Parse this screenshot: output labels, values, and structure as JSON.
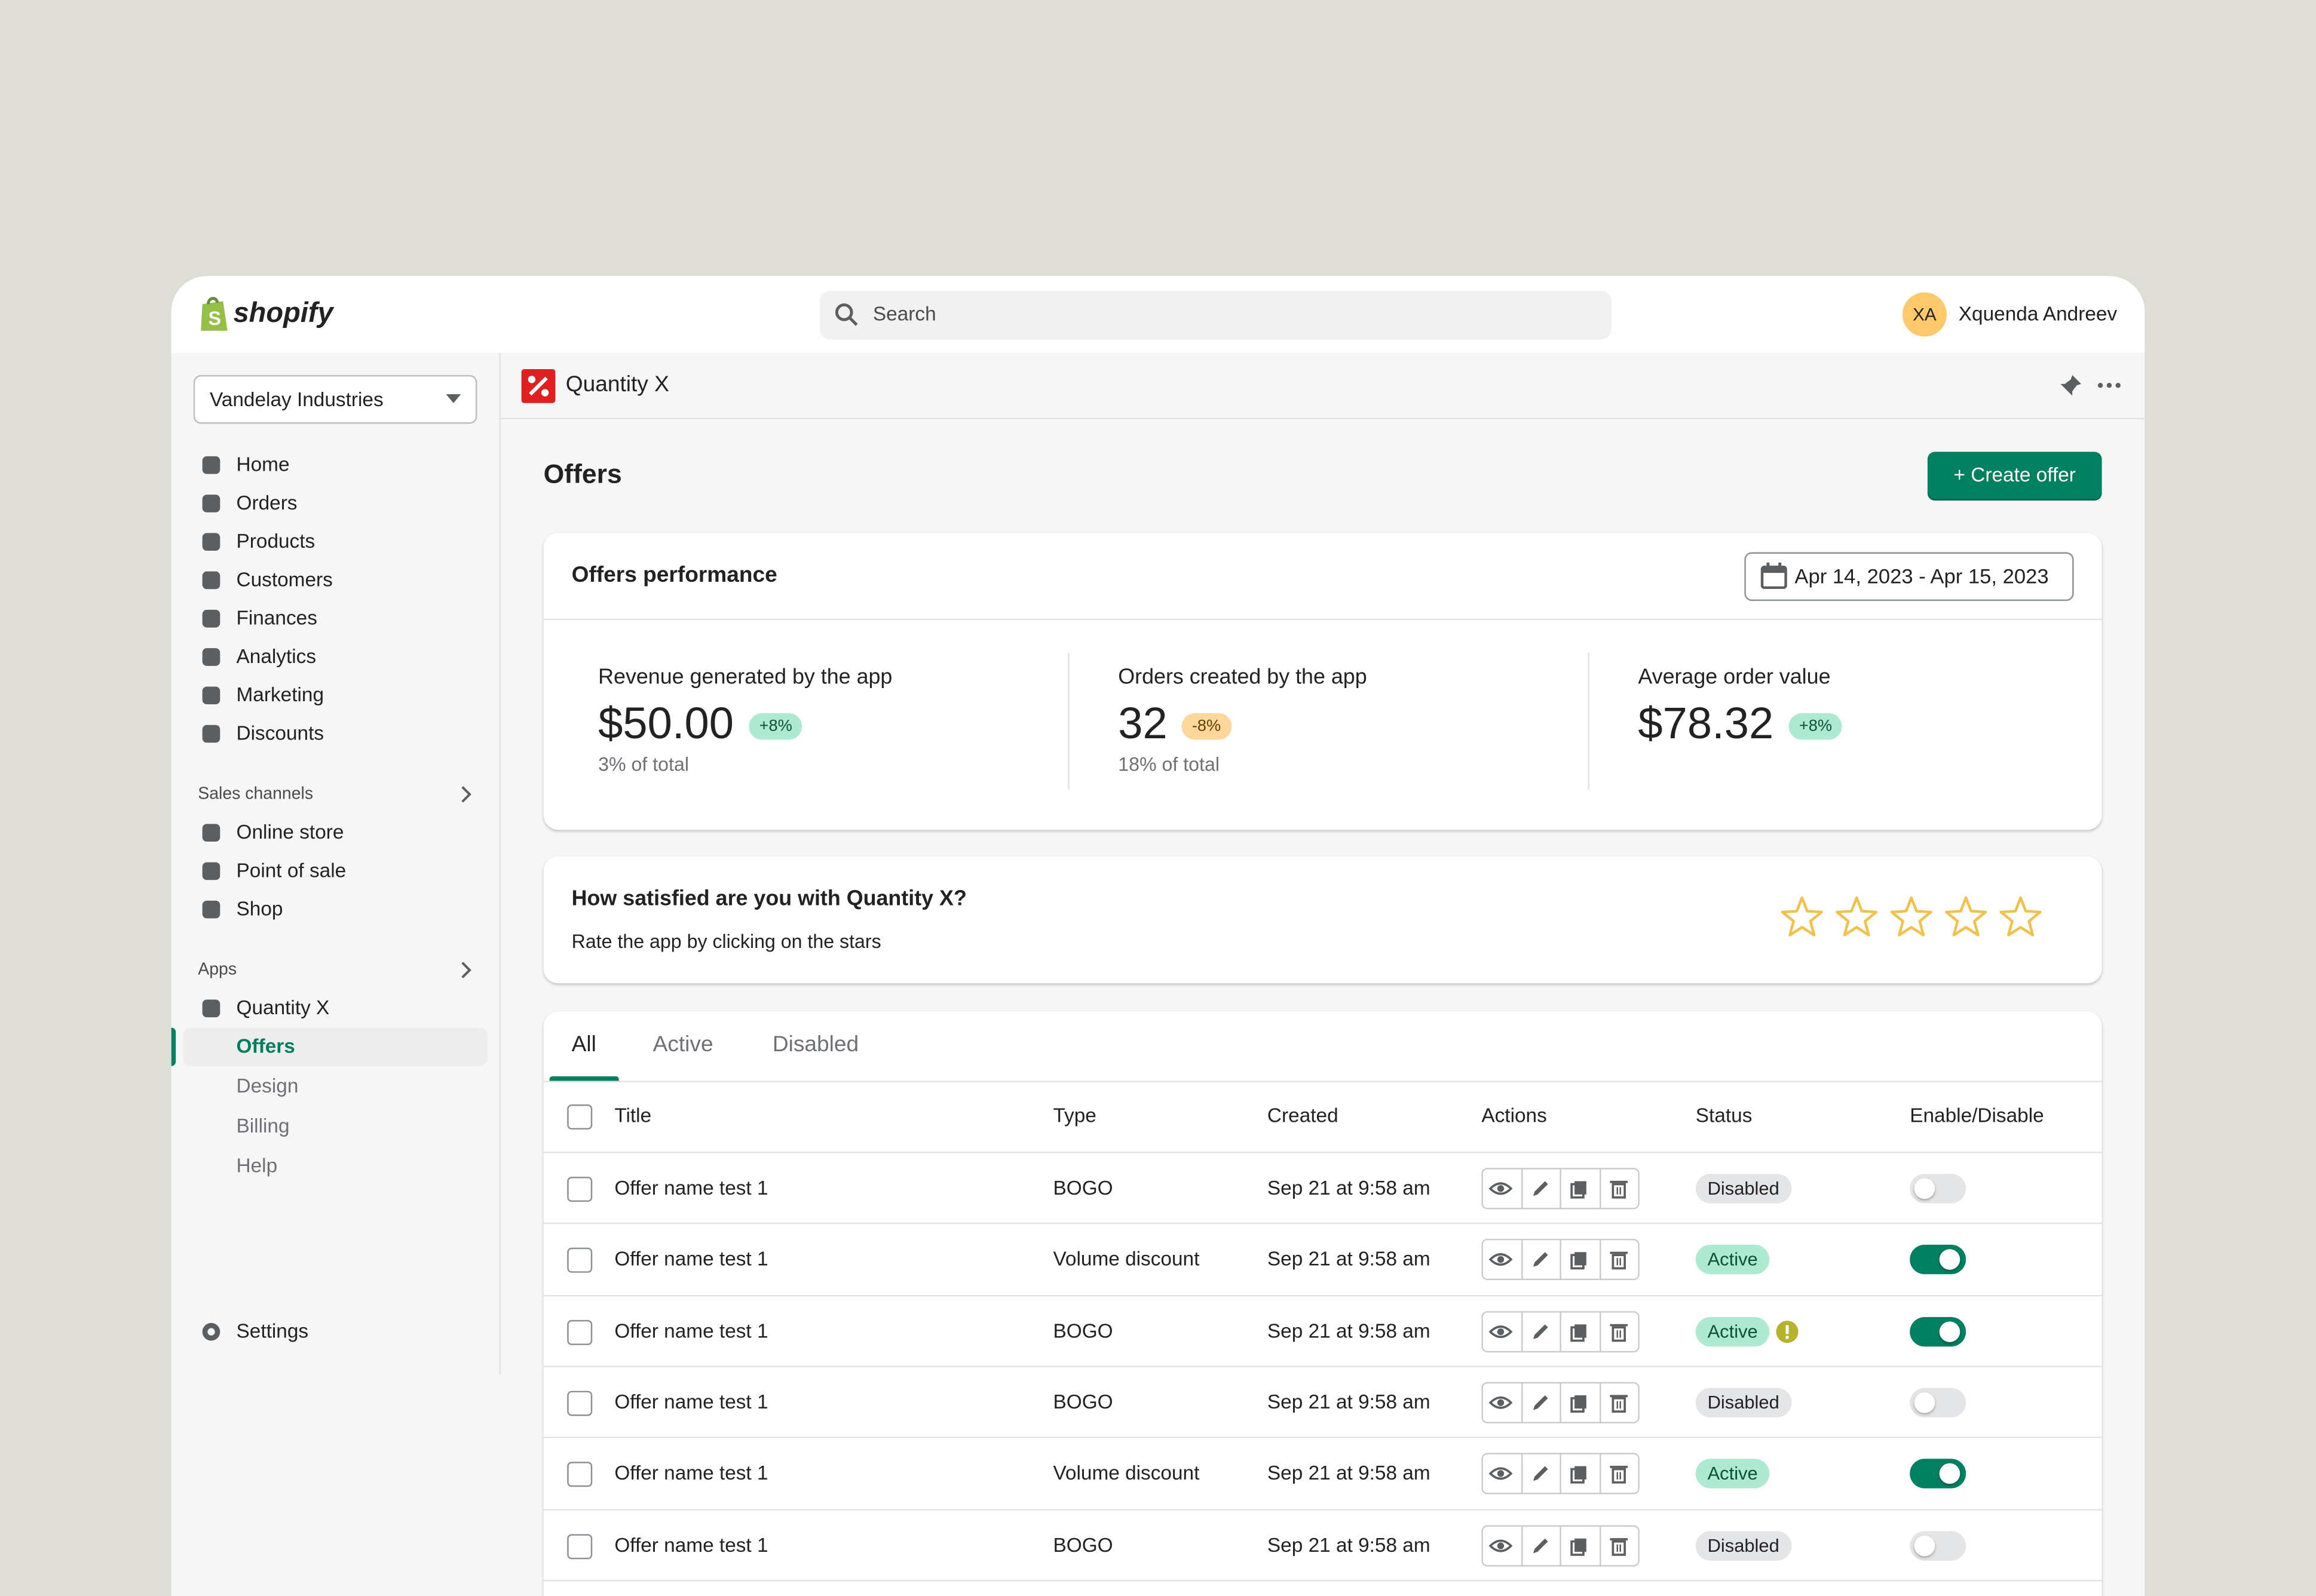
{
  "header": {
    "logo": "shopify",
    "search": "Search",
    "avatar": "XA",
    "user": "Xquenda Andreev"
  },
  "sidebar": {
    "store": "Vandelay Industries",
    "nav": [
      "Home",
      "Orders",
      "Products",
      "Customers",
      "Finances",
      "Analytics",
      "Marketing",
      "Discounts"
    ],
    "sales_channels": {
      "title": "Sales channels",
      "items": [
        "Online store",
        "Point of sale",
        "Shop"
      ]
    },
    "apps": {
      "title": "Apps",
      "app": "Quantity X",
      "items": [
        "Offers",
        "Design",
        "Billing",
        "Help"
      ],
      "active_index": 0
    },
    "settings": "Settings"
  },
  "app_bar": {
    "title": "Quantity X"
  },
  "page": {
    "title": "Offers",
    "primary_action": "+ Create offer"
  },
  "performance": {
    "title": "Offers performance",
    "date_range": "Apr 14, 2023 - Apr 15, 2023",
    "metrics": [
      {
        "label": "Revenue generated by the app",
        "value": "$50.00",
        "change": "+8%",
        "trend": "up",
        "note": "3% of total"
      },
      {
        "label": "Orders created by the app",
        "value": "32",
        "change": "-8%",
        "trend": "down",
        "note": "18% of total"
      },
      {
        "label": "Average order value",
        "value": "$78.32",
        "change": "+8%",
        "trend": "up"
      }
    ]
  },
  "rating": {
    "title": "How satisfied are you with Quantity X?",
    "subtitle": "Rate the app by clicking on the stars",
    "stars": 5
  },
  "table": {
    "tabs": [
      "All",
      "Active",
      "Disabled"
    ],
    "selected_tab": 0,
    "columns": [
      "Title",
      "Type",
      "Created",
      "Actions",
      "Status",
      "Enable/Disable"
    ],
    "rows": [
      {
        "title": "Offer name test 1",
        "type": "BOGO",
        "created": "Sep 21 at 9:58 am",
        "status": "Disabled",
        "enabled": false,
        "warning": false
      },
      {
        "title": "Offer name test 1",
        "type": "Volume discount",
        "created": "Sep 21 at 9:58 am",
        "status": "Active",
        "enabled": true,
        "warning": false
      },
      {
        "title": "Offer name test 1",
        "type": "BOGO",
        "created": "Sep 21 at 9:58 am",
        "status": "Active",
        "enabled": true,
        "warning": true
      },
      {
        "title": "Offer name test 1",
        "type": "BOGO",
        "created": "Sep 21 at 9:58 am",
        "status": "Disabled",
        "enabled": false,
        "warning": false
      },
      {
        "title": "Offer name test 1",
        "type": "Volume discount",
        "created": "Sep 21 at 9:58 am",
        "status": "Active",
        "enabled": true,
        "warning": false
      },
      {
        "title": "Offer name test 1",
        "type": "BOGO",
        "created": "Sep 21 at 9:58 am",
        "status": "Disabled",
        "enabled": false,
        "warning": false
      }
    ]
  }
}
